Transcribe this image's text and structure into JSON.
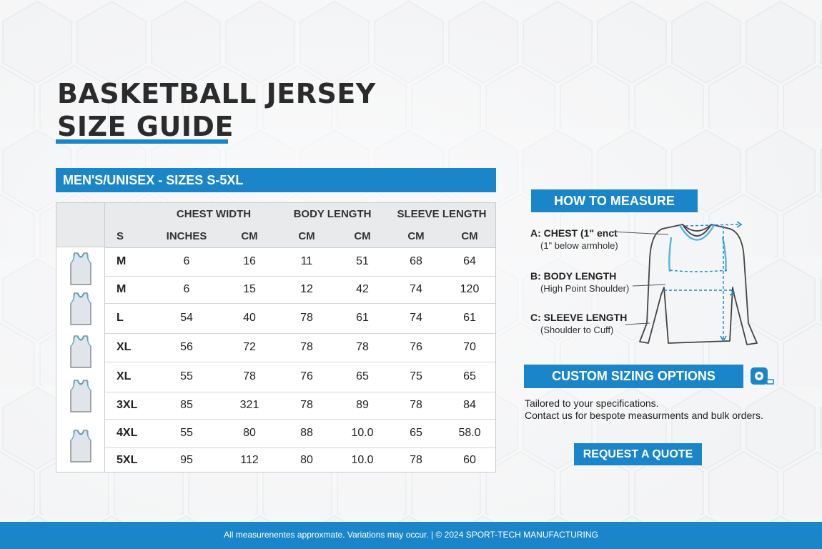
{
  "title": {
    "line1": "BASKETBALL JERSEY",
    "line2": "SIZE GUIDE"
  },
  "section_title": "MEN'S/UNISEX - SIZES S-5XL",
  "table": {
    "group_headers": [
      "CHEST WIDTH",
      "BODY LENGTH",
      "SLEEVE LENGTH"
    ],
    "unit_headers": [
      "S",
      "INCHES",
      "CM",
      "CM",
      "CM",
      "CM",
      "CM"
    ],
    "rows": [
      [
        "M",
        "6",
        "16",
        "11",
        "51",
        "68",
        "64"
      ],
      [
        "M",
        "6",
        "15",
        "12",
        "42",
        "74",
        "120"
      ],
      [
        "L",
        "54",
        "40",
        "78",
        "61",
        "74",
        "61"
      ],
      [
        "XL",
        "56",
        "72",
        "78",
        "78",
        "76",
        "70"
      ],
      [
        "XL",
        "55",
        "78",
        "76",
        "65",
        "75",
        "65"
      ],
      [
        "3XL",
        "85",
        "321",
        "78",
        "89",
        "78",
        "84"
      ],
      [
        "4XL",
        "55",
        "80",
        "88",
        "10.0",
        "65",
        "58.0"
      ],
      [
        "5XL",
        "95",
        "112",
        "80",
        "10.0",
        "78",
        "60"
      ]
    ]
  },
  "how_to_measure": {
    "title": "HOW TO MEASURE",
    "items": [
      {
        "label": "A: CHEST (1\" enct",
        "sub": "(1\" below armhole)"
      },
      {
        "label": "B: BODY LENGTH",
        "sub": "(High Point Shoulder)"
      },
      {
        "label": "C: SLEEVE LENGTH",
        "sub": "(Shoulder to Cuff)"
      }
    ]
  },
  "custom": {
    "title": "CUSTOM SIZING OPTIONS",
    "line1": "Tailored to your specifications.",
    "line2": "Contact us for bespote measurments and bulk orders."
  },
  "quote_button": "REQUEST A QUOTE",
  "footer": "All measurenentes  approxmate. Variations may occur. | © 2024 SPORT-TECH MANUFACTURING",
  "colors": {
    "accent": "#1a86c9",
    "jersey_fill": "#dfe5ea",
    "jersey_trim": "#5ab4e0"
  },
  "icons": [
    "tank-top-icon",
    "measuring-tape-icon",
    "long-sleeve-shirt-diagram"
  ]
}
